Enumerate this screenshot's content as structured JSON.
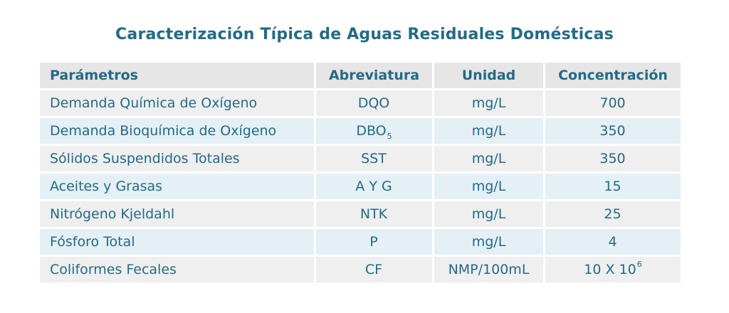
{
  "title": "Caracterización Típica de Aguas Residuales Domésticas",
  "headers": [
    "Parámetros",
    "Abreviatura",
    "Unidad",
    "Concentración"
  ],
  "rows": [
    {
      "parametro": "Demanda Química de Oxígeno",
      "abreviatura": "DQO",
      "abreviatura_sub": "",
      "unidad": "mg/L",
      "concentracion": "700",
      "concentracion_sup": ""
    },
    {
      "parametro": "Demanda Bioquímica de Oxígeno",
      "abreviatura": "DBO",
      "abreviatura_sub": "5",
      "unidad": "mg/L",
      "concentracion": "350",
      "concentracion_sup": ""
    },
    {
      "parametro": "Sólidos Suspendidos Totales",
      "abreviatura": "SST",
      "abreviatura_sub": "",
      "unidad": "mg/L",
      "concentracion": "350",
      "concentracion_sup": ""
    },
    {
      "parametro": "Aceites y Grasas",
      "abreviatura": "A Y G",
      "abreviatura_sub": "",
      "unidad": "mg/L",
      "concentracion": "15",
      "concentracion_sup": ""
    },
    {
      "parametro": "Nitrógeno Kjeldahl",
      "abreviatura": "NTK",
      "abreviatura_sub": "",
      "unidad": "mg/L",
      "concentracion": "25",
      "concentracion_sup": ""
    },
    {
      "parametro": "Fósforo Total",
      "abreviatura": "P",
      "abreviatura_sub": "",
      "unidad": "mg/L",
      "concentracion": "4",
      "concentracion_sup": ""
    },
    {
      "parametro": "Coliformes Fecales",
      "abreviatura": "CF",
      "abreviatura_sub": "",
      "unidad": "NMP/100mL",
      "concentracion": "10 X 10",
      "concentracion_sup": "6"
    }
  ],
  "colors": {
    "text": "#246a86",
    "header_bg": "#e6e6e6",
    "row_gray": "#efefef",
    "row_blue": "#e4f0f5"
  }
}
